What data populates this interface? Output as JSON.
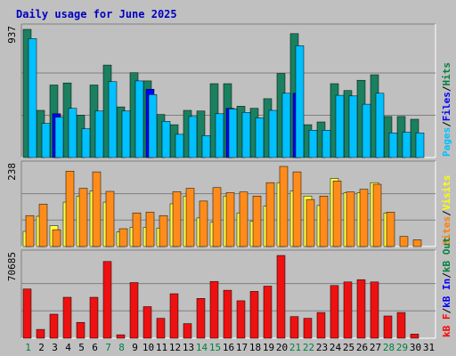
{
  "chart_data": {
    "type": "bar",
    "title": "Daily usage for June 2025",
    "categories": [
      "1",
      "2",
      "3",
      "4",
      "5",
      "6",
      "7",
      "8",
      "9",
      "10",
      "11",
      "12",
      "13",
      "14",
      "15",
      "16",
      "17",
      "18",
      "19",
      "20",
      "21",
      "22",
      "23",
      "24",
      "25",
      "26",
      "27",
      "28",
      "29",
      "30",
      "31"
    ],
    "weekend_days": [
      "1",
      "7",
      "8",
      "14",
      "15",
      "21",
      "22",
      "28",
      "29"
    ],
    "panels": [
      {
        "id": "hits-files-pages",
        "ylabel_max": "937",
        "ymax": 937,
        "legend": [
          {
            "label": "Pages",
            "color": "#00c0ff"
          },
          {
            "label": "/",
            "color": "#000000"
          },
          {
            "label": "Files",
            "color": "#0000ff"
          },
          {
            "label": "/",
            "color": "#000000"
          },
          {
            "label": "Hits",
            "color": "#008040"
          }
        ],
        "series": [
          {
            "name": "Hits",
            "color": "#1a8060",
            "values": [
              937,
              345,
              530,
              545,
              310,
              530,
              676,
              370,
              620,
              560,
              315,
              240,
              345,
              340,
              540,
              540,
              375,
              360,
              430,
              614,
              906,
              240,
              260,
              540,
              490,
              565,
              605,
              300,
              300,
              280,
              0
            ]
          },
          {
            "name": "Files",
            "color": "#0000ff",
            "values": [
              0,
              0,
              320,
              0,
              0,
              0,
              0,
              0,
              0,
              500,
              0,
              0,
              0,
              0,
              0,
              360,
              0,
              0,
              0,
              0,
              470,
              0,
              0,
              0,
              0,
              0,
              0,
              0,
              0,
              0,
              0
            ]
          },
          {
            "name": "Pages",
            "color": "#00c0ff",
            "values": [
              870,
              250,
              295,
              360,
              210,
              340,
              555,
              340,
              560,
              460,
              265,
              170,
              300,
              160,
              320,
              355,
              330,
              290,
              345,
              470,
              817,
              200,
              200,
              455,
              450,
              390,
              470,
              180,
              185,
              180,
              0
            ]
          }
        ]
      },
      {
        "id": "visits-sites",
        "ylabel_max": "238",
        "ymax": 238,
        "legend": [
          {
            "label": "Sites",
            "color": "#ff8000"
          },
          {
            "label": "/",
            "color": "#000000"
          },
          {
            "label": "Visits",
            "color": "#ffff00"
          }
        ],
        "series": [
          {
            "name": "Visits",
            "color": "#ffff44",
            "values": [
              45,
              90,
              62,
              132,
              150,
              165,
              132,
              43,
              57,
              57,
              55,
              127,
              150,
              85,
              72,
              150,
              100,
              75,
              120,
              190,
              165,
              150,
              122,
              202,
              160,
              160,
              190,
              100,
              0,
              0,
              0
            ]
          },
          {
            "name": "Sites",
            "color": "#ff8c1a",
            "values": [
              92,
              126,
              50,
              224,
              173,
              222,
              164,
              53,
              100,
              102,
              92,
              163,
              173,
              135,
              175,
              160,
              162,
              150,
              190,
              238,
              222,
              140,
              150,
              195,
              162,
              170,
              185,
              102,
              30,
              20,
              0
            ]
          }
        ]
      },
      {
        "id": "kbytes",
        "ylabel_max": "70685",
        "ymax": 70685,
        "legend": [
          {
            "label": "kB F",
            "color": "#ff0000"
          },
          {
            "label": "/",
            "color": "#000000"
          },
          {
            "label": "kB In",
            "color": "#0000ff"
          },
          {
            "label": "/",
            "color": "#000000"
          },
          {
            "label": "kB Out",
            "color": "#008040"
          }
        ],
        "series": [
          {
            "name": "kB F",
            "color": "#ee1111",
            "values": [
              42000,
              7500,
              20500,
              35000,
              13500,
              35000,
              65500,
              3000,
              47500,
              27000,
              17000,
              38000,
              12500,
              34000,
              48500,
              41000,
              32000,
              40000,
              44500,
              70685,
              18500,
              17000,
              22000,
              45000,
              48000,
              50000,
              48000,
              19000,
              22000,
              3500,
              0
            ]
          }
        ]
      }
    ]
  }
}
